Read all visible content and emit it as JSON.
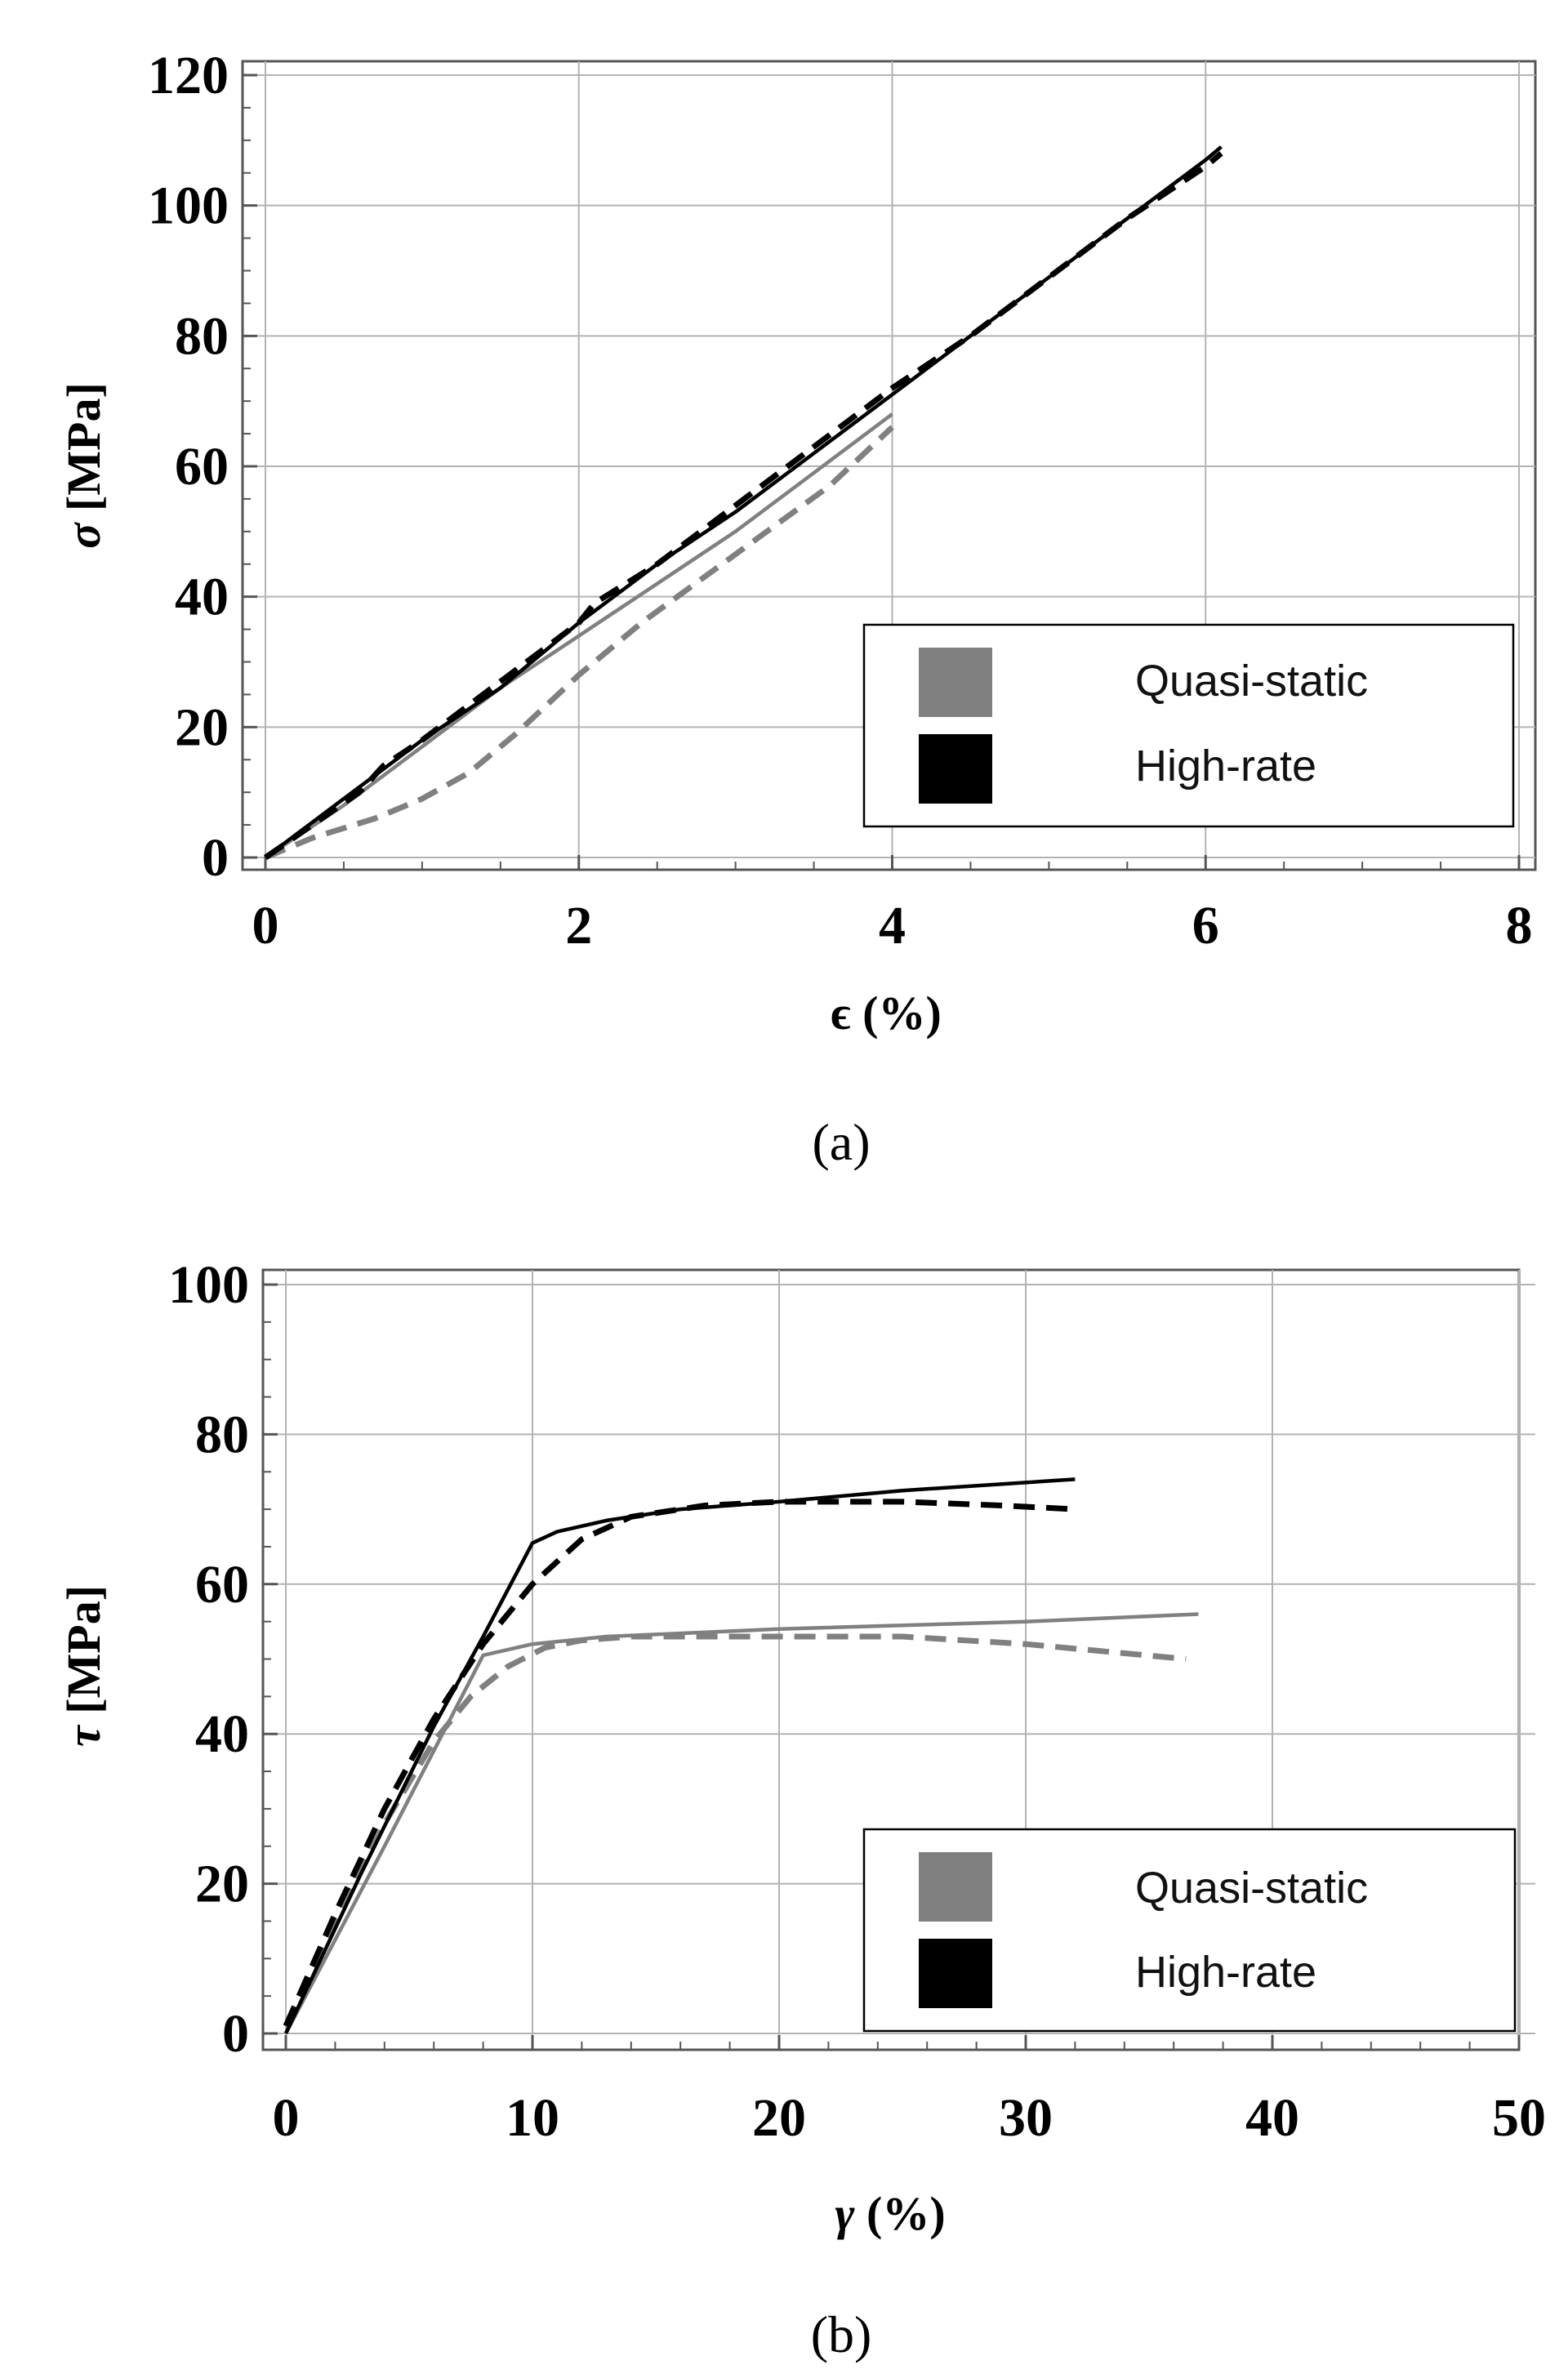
{
  "chart_data": [
    {
      "type": "line",
      "caption": "(a)",
      "xlabel_symbol": "ϵ",
      "xlabel_unit": " (%)",
      "ylabel_symbol": "σ",
      "ylabel_unit": " [MPa]",
      "xlim": [
        0,
        8
      ],
      "ylim": [
        0,
        120
      ],
      "xticks": [
        0,
        2,
        4,
        6,
        8
      ],
      "yticks": [
        0,
        20,
        40,
        60,
        80,
        100,
        120
      ],
      "grid": true,
      "legend": {
        "position": "bottom-right",
        "items": [
          "Quasi-static",
          "High-rate"
        ]
      },
      "colors": {
        "quasi": "#808080",
        "high": "#000000"
      },
      "series": [
        {
          "name": "Quasi-static (solid)",
          "group": "quasi",
          "dash": "solid",
          "x": [
            0,
            0.5,
            1,
            1.5,
            2,
            2.5,
            3,
            3.5,
            4
          ],
          "y": [
            0,
            8,
            17,
            26,
            34,
            42,
            50,
            59,
            68
          ]
        },
        {
          "name": "Quasi-static (dashed)",
          "group": "quasi",
          "dash": "dashed",
          "x": [
            0,
            0.3,
            0.7,
            1.0,
            1.3,
            1.6,
            2.0,
            2.4,
            2.8,
            3.2,
            3.6,
            4.0
          ],
          "y": [
            0,
            3,
            6,
            9,
            13,
            19,
            28,
            36,
            43,
            50,
            57,
            66
          ]
        },
        {
          "name": "High-rate (solid)",
          "group": "high",
          "dash": "solid",
          "x": [
            0,
            0.5,
            1,
            1.5,
            2,
            2.5,
            3,
            3.5,
            4,
            4.5,
            5,
            5.5,
            6,
            6.1
          ],
          "y": [
            0,
            9,
            18,
            26,
            36,
            45,
            53,
            62,
            71,
            80,
            89,
            98,
            107,
            109
          ]
        },
        {
          "name": "High-rate (dashed)",
          "group": "high",
          "dash": "dashed",
          "x": [
            0,
            0.3,
            0.6,
            0.75,
            1,
            1.5,
            2,
            2.1,
            2.5,
            3,
            3.5,
            4,
            4.5,
            5,
            5.5,
            6,
            6.1
          ],
          "y": [
            0,
            5,
            10,
            14,
            18,
            27,
            36,
            39,
            45,
            54,
            63,
            72,
            80,
            89,
            98,
            106,
            108
          ]
        }
      ]
    },
    {
      "type": "line",
      "caption": "(b)",
      "xlabel_symbol": "γ",
      "xlabel_unit": " (%)",
      "ylabel_symbol": "τ",
      "ylabel_unit": " [MPa]",
      "xlim": [
        0,
        50
      ],
      "ylim": [
        0,
        100
      ],
      "xticks": [
        0,
        10,
        20,
        30,
        40,
        50
      ],
      "yticks": [
        0,
        20,
        40,
        60,
        80,
        100
      ],
      "grid": true,
      "legend": {
        "position": "bottom-right",
        "items": [
          "Quasi-static",
          "High-rate"
        ]
      },
      "colors": {
        "quasi": "#808080",
        "high": "#000000"
      },
      "series": [
        {
          "name": "Quasi-static (solid)",
          "group": "quasi",
          "dash": "solid",
          "x": [
            0,
            4,
            8,
            10,
            13,
            20,
            30,
            37
          ],
          "y": [
            0,
            25,
            50.5,
            52,
            53,
            54,
            55,
            56
          ]
        },
        {
          "name": "Quasi-static (dashed)",
          "group": "quasi",
          "dash": "dashed",
          "x": [
            0,
            2,
            4,
            6,
            7.5,
            9,
            10.5,
            12,
            14,
            20,
            25,
            30,
            36.5
          ],
          "y": [
            1,
            15,
            28,
            39,
            45,
            49,
            51.5,
            52.5,
            53,
            53,
            53,
            52,
            50
          ]
        },
        {
          "name": "High-rate (solid)",
          "group": "high",
          "dash": "solid",
          "x": [
            0,
            3,
            6,
            8,
            10,
            11,
            13,
            16,
            20,
            25,
            32
          ],
          "y": [
            0,
            21,
            41,
            53,
            65.5,
            67,
            68.5,
            70,
            71,
            72.5,
            74
          ]
        },
        {
          "name": "High-rate (dashed)",
          "group": "high",
          "dash": "dashed",
          "x": [
            0,
            2,
            4,
            6,
            8,
            10,
            12,
            14,
            17,
            20,
            25,
            29,
            32
          ],
          "y": [
            1,
            16,
            30,
            42,
            52,
            60,
            66,
            69,
            70.5,
            71,
            71,
            70.5,
            70
          ]
        }
      ]
    }
  ]
}
